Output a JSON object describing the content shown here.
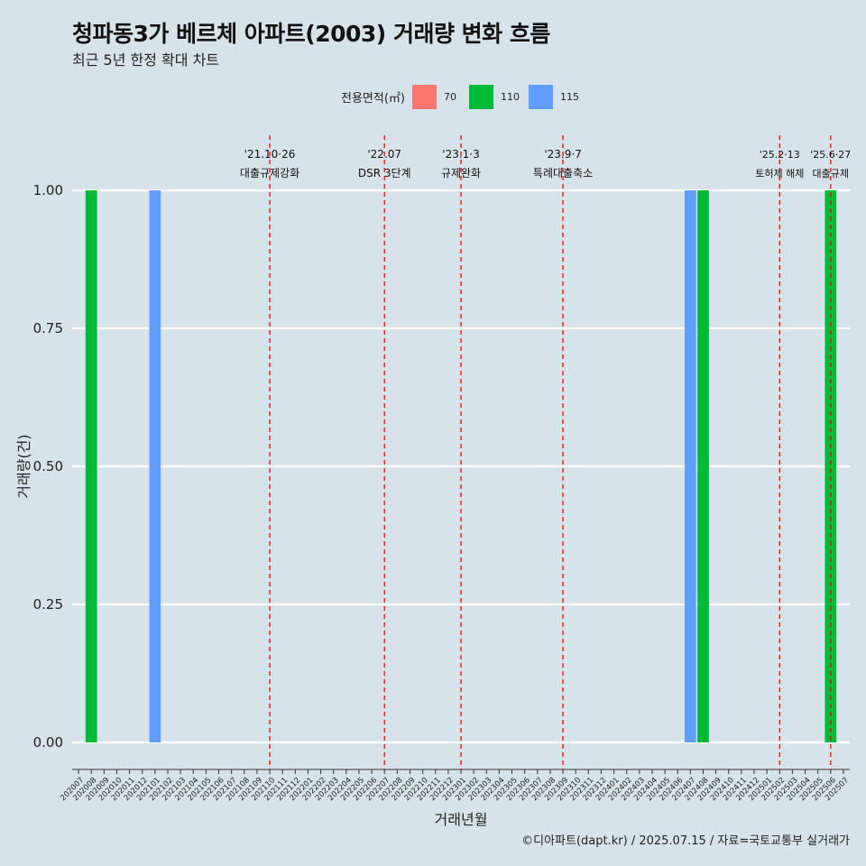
{
  "title": "청파동3가 베르체 아파트(2003) 거래량 변화 흐름",
  "subtitle": "최근 5년 한정 확대 차트",
  "caption": "©디아파트(dapt.kr) / 2025.07.15 / 자료=국토교통부 실거래가",
  "legend": {
    "title": "전용면적(㎡)",
    "items": [
      {
        "label": "70",
        "color": "#f8766d"
      },
      {
        "label": "110",
        "color": "#00ba38"
      },
      {
        "label": "115",
        "color": "#619cff"
      }
    ]
  },
  "chart_data": {
    "type": "bar",
    "xlabel": "거래년월",
    "ylabel": "거래량(건)",
    "ylim": [
      0,
      1
    ],
    "yticks": [
      "0.00",
      "0.25",
      "0.50",
      "0.75",
      "1.00"
    ],
    "categories": [
      "202007",
      "202008",
      "202009",
      "202010",
      "202011",
      "202012",
      "202101",
      "202102",
      "202103",
      "202104",
      "202105",
      "202106",
      "202107",
      "202108",
      "202109",
      "202110",
      "202111",
      "202112",
      "202201",
      "202202",
      "202203",
      "202204",
      "202205",
      "202206",
      "202207",
      "202208",
      "202209",
      "202210",
      "202211",
      "202212",
      "202301",
      "202302",
      "202303",
      "202304",
      "202305",
      "202306",
      "202307",
      "202308",
      "202309",
      "202310",
      "202311",
      "202312",
      "202401",
      "202402",
      "202403",
      "202404",
      "202405",
      "202406",
      "202407",
      "202408",
      "202409",
      "202410",
      "202411",
      "202412",
      "202501",
      "202502",
      "202503",
      "202504",
      "202505",
      "202506",
      "202507"
    ],
    "series": [
      {
        "name": "110",
        "color": "#00ba38",
        "points": [
          {
            "x": "202008",
            "y": 1
          },
          {
            "x": "202408",
            "y": 1
          },
          {
            "x": "202506",
            "y": 1
          }
        ]
      },
      {
        "name": "115",
        "color": "#619cff",
        "points": [
          {
            "x": "202101",
            "y": 1
          },
          {
            "x": "202407",
            "y": 1
          }
        ]
      }
    ],
    "annotations": [
      {
        "x": "202110",
        "line1": "'21.10·26",
        "line2": "대출규제강화"
      },
      {
        "x": "202207",
        "line1": "'22.07",
        "line2": "DSR 3단계"
      },
      {
        "x": "202301",
        "line1": "'23.1·3",
        "line2": "규제완화"
      },
      {
        "x": "202309",
        "line1": "'23.9·7",
        "line2": "특례대출축소"
      },
      {
        "x": "202502",
        "line1": "'25.2·13",
        "line2": "토허제 해제"
      },
      {
        "x": "202506",
        "line1": "'25.6·27",
        "line2": "대출규제"
      }
    ]
  }
}
